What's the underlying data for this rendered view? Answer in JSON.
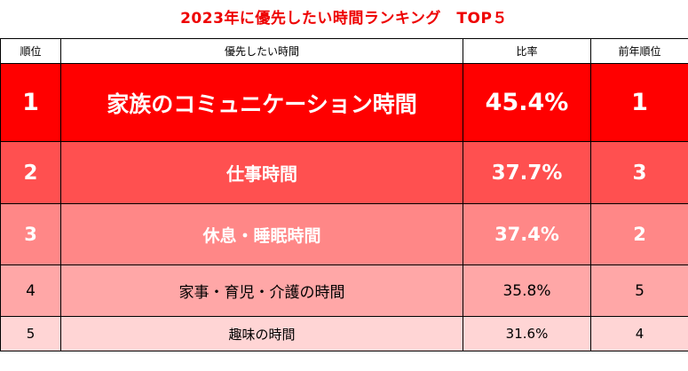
{
  "title": "2023年に優先したい時間ランキング　TOP５",
  "headers": {
    "rank": "順位",
    "item": "優先したい時間",
    "ratio": "比率",
    "prev_rank": "前年順位"
  },
  "rows": [
    {
      "rank": "1",
      "item": "家族のコミュニケーション時間",
      "ratio": "45.4%",
      "prev_rank": "1"
    },
    {
      "rank": "2",
      "item": "仕事時間",
      "ratio": "37.7%",
      "prev_rank": "3"
    },
    {
      "rank": "3",
      "item": "休息・睡眠時間",
      "ratio": "37.4%",
      "prev_rank": "2"
    },
    {
      "rank": "4",
      "item": "家事・育児・介護の時間",
      "ratio": "35.8%",
      "prev_rank": "5"
    },
    {
      "rank": "5",
      "item": "趣味の時間",
      "ratio": "31.6%",
      "prev_rank": "4"
    }
  ],
  "colors": {
    "title": "#ee0000",
    "row1": "#ff0000",
    "row2": "#ff5050",
    "row3": "#ff8787",
    "row4": "#ffa7a7",
    "row5": "#ffd5d5"
  }
}
